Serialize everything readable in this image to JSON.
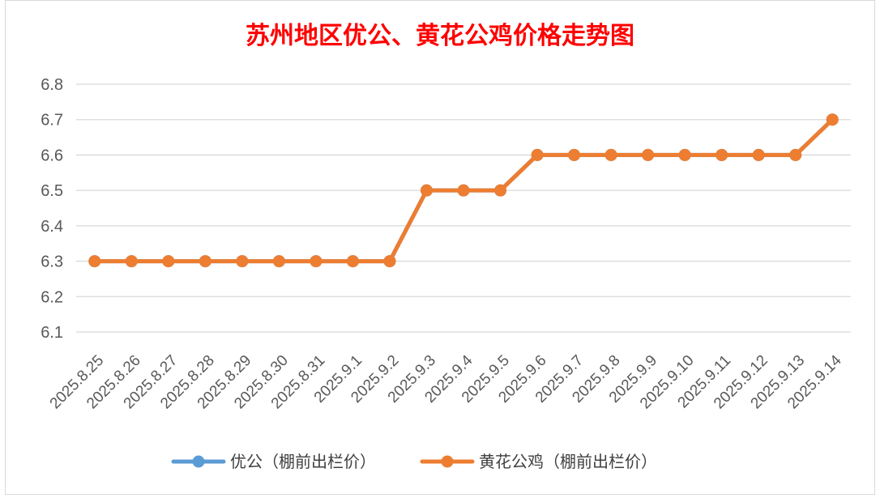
{
  "chart_data": {
    "type": "line",
    "title": "苏州地区优公、黄花公鸡价格走势图",
    "categories": [
      "2025.8.25",
      "2025.8.26",
      "2025.8.27",
      "2025.8.28",
      "2025.8.29",
      "2025.8.30",
      "2025.8.31",
      "2025.9.1",
      "2025.9.2",
      "2025.9.3",
      "2025.9.4",
      "2025.9.5",
      "2025.9.6",
      "2025.9.7",
      "2025.9.8",
      "2025.9.9",
      "2025.9.10",
      "2025.9.11",
      "2025.9.12",
      "2025.9.13",
      "2025.9.14"
    ],
    "series": [
      {
        "name": "优公（棚前出栏价）",
        "color": "#5b9bd5",
        "values": [
          6.3,
          6.3,
          6.3,
          6.3,
          6.3,
          6.3,
          6.3,
          6.3,
          6.3,
          6.5,
          6.5,
          6.5,
          6.6,
          6.6,
          6.6,
          6.6,
          6.6,
          6.6,
          6.6,
          6.6,
          6.7
        ]
      },
      {
        "name": "黄花公鸡（棚前出栏价）",
        "color": "#ed7d31",
        "values": [
          6.3,
          6.3,
          6.3,
          6.3,
          6.3,
          6.3,
          6.3,
          6.3,
          6.3,
          6.5,
          6.5,
          6.5,
          6.6,
          6.6,
          6.6,
          6.6,
          6.6,
          6.6,
          6.6,
          6.6,
          6.7
        ]
      }
    ],
    "yticks": [
      "6.1",
      "6.2",
      "6.3",
      "6.4",
      "6.5",
      "6.6",
      "6.7",
      "6.8"
    ],
    "ylim": [
      6.1,
      6.8
    ],
    "grid": true,
    "legend_position": "bottom"
  }
}
